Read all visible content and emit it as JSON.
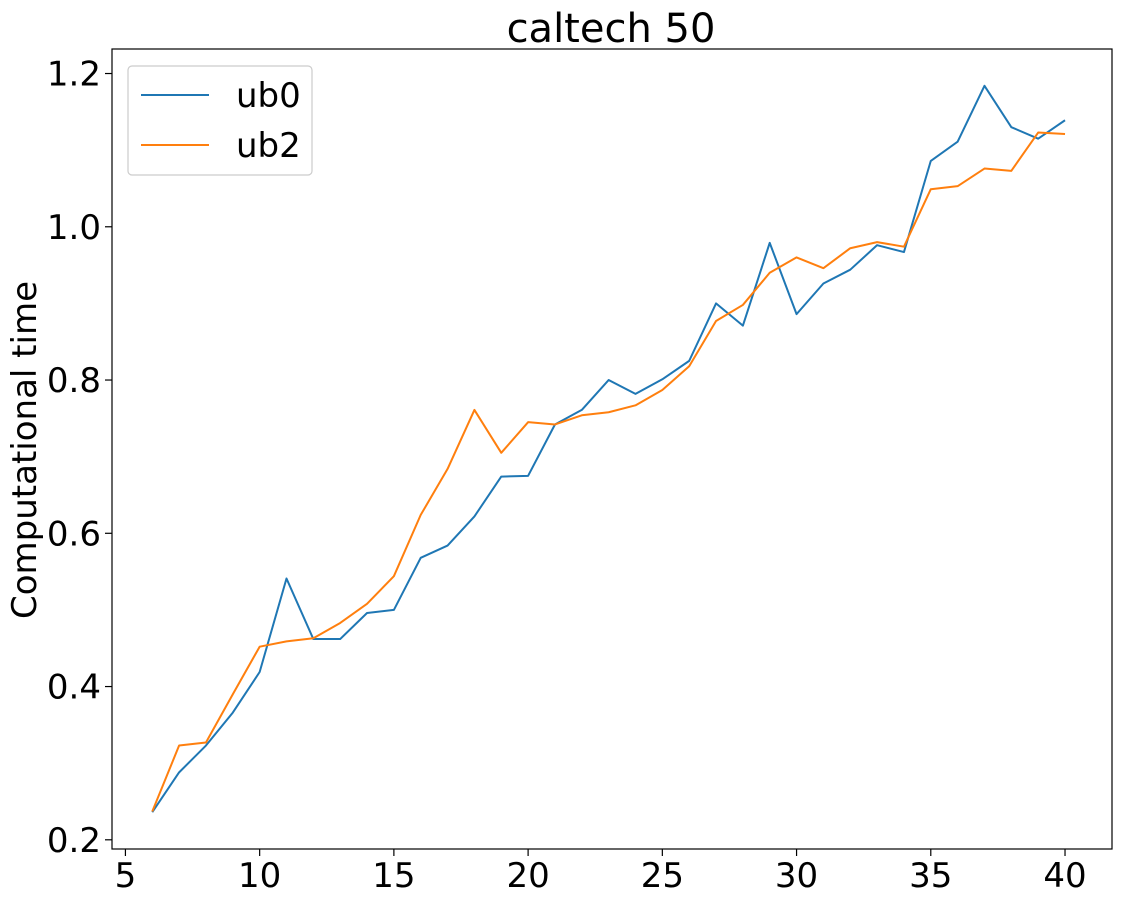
{
  "chart_data": {
    "type": "line",
    "title": "caltech 50",
    "xlabel": "",
    "ylabel": "Computational time",
    "xlim": [
      4.5,
      41.75
    ],
    "ylim": [
      0.188,
      1.232
    ],
    "xticks": [
      5,
      10,
      15,
      20,
      25,
      30,
      35,
      40
    ],
    "yticks": [
      0.2,
      0.4,
      0.6,
      0.8,
      1.0,
      1.2
    ],
    "xtick_labels": [
      "5",
      "10",
      "15",
      "20",
      "25",
      "30",
      "35",
      "40"
    ],
    "ytick_labels": [
      "0.2",
      "0.4",
      "0.6",
      "0.8",
      "1.0",
      "1.2"
    ],
    "grid": false,
    "legend": "upper-left",
    "x": [
      6,
      7,
      8,
      9,
      10,
      11,
      12,
      13,
      14,
      15,
      16,
      17,
      18,
      19,
      20,
      21,
      22,
      23,
      24,
      25,
      26,
      27,
      28,
      29,
      30,
      31,
      32,
      33,
      34,
      35,
      36,
      37,
      38,
      39,
      40
    ],
    "series": [
      {
        "name": "ub0",
        "color": "#1f77b4",
        "values": [
          0.236,
          0.288,
          0.323,
          0.366,
          0.419,
          0.541,
          0.462,
          0.462,
          0.496,
          0.5,
          0.568,
          0.584,
          0.622,
          0.674,
          0.675,
          0.742,
          0.761,
          0.8,
          0.782,
          0.801,
          0.825,
          0.9,
          0.871,
          0.979,
          0.886,
          0.926,
          0.944,
          0.976,
          0.967,
          1.086,
          1.111,
          1.184,
          1.13,
          1.115,
          1.139
        ]
      },
      {
        "name": "ub2",
        "color": "#ff7f0e",
        "values": [
          0.237,
          0.323,
          0.327,
          0.39,
          0.452,
          0.459,
          0.463,
          0.483,
          0.508,
          0.544,
          0.624,
          0.684,
          0.761,
          0.705,
          0.745,
          0.742,
          0.754,
          0.758,
          0.767,
          0.787,
          0.818,
          0.877,
          0.898,
          0.94,
          0.96,
          0.946,
          0.972,
          0.98,
          0.974,
          1.049,
          1.053,
          1.076,
          1.073,
          1.123,
          1.121
        ]
      }
    ]
  }
}
